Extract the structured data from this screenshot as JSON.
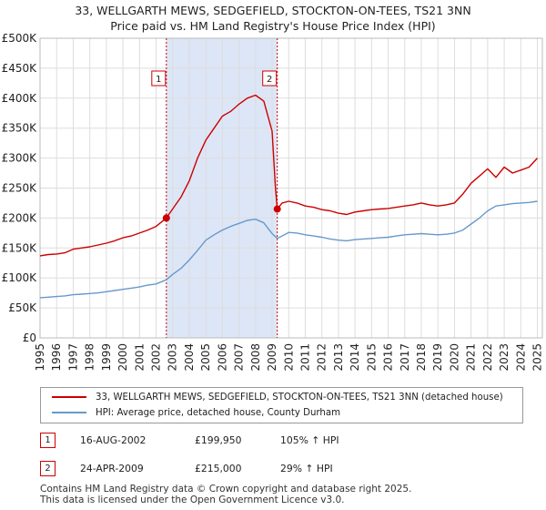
{
  "title_line1": "33, WELLGARTH MEWS, SEDGEFIELD, STOCKTON-ON-TEES, TS21 3NN",
  "title_line2": "Price paid vs. HM Land Registry's House Price Index (HPI)",
  "colors": {
    "property": "#cc0000",
    "hpi": "#6699cc",
    "shade": "#dde6f7",
    "grid": "#dddddd"
  },
  "chart_data": {
    "type": "line",
    "title": "33, WELLGARTH MEWS, SEDGEFIELD, STOCKTON-ON-TEES, TS21 3NN — Price paid vs. HM Land Registry's House Price Index (HPI)",
    "xlabel": "",
    "ylabel": "",
    "xlim": [
      1995,
      2025.3
    ],
    "ylim": [
      0,
      500000
    ],
    "y_ticks": [
      {
        "value": 0,
        "label": "£0"
      },
      {
        "value": 50000,
        "label": "£50K"
      },
      {
        "value": 100000,
        "label": "£100K"
      },
      {
        "value": 150000,
        "label": "£150K"
      },
      {
        "value": 200000,
        "label": "£200K"
      },
      {
        "value": 250000,
        "label": "£250K"
      },
      {
        "value": 300000,
        "label": "£300K"
      },
      {
        "value": 350000,
        "label": "£350K"
      },
      {
        "value": 400000,
        "label": "£400K"
      },
      {
        "value": 450000,
        "label": "£450K"
      },
      {
        "value": 500000,
        "label": "£500K"
      }
    ],
    "x_ticks": [
      "1995",
      "1996",
      "1997",
      "1998",
      "1999",
      "2000",
      "2001",
      "2002",
      "2003",
      "2004",
      "2005",
      "2006",
      "2007",
      "2008",
      "2009",
      "2010",
      "2011",
      "2012",
      "2013",
      "2014",
      "2015",
      "2016",
      "2017",
      "2018",
      "2019",
      "2020",
      "2021",
      "2022",
      "2023",
      "2024",
      "2025"
    ],
    "shaded_period": [
      2002.62,
      2009.31
    ],
    "series": [
      {
        "name": "33, WELLGARTH MEWS, SEDGEFIELD, STOCKTON-ON-TEES, TS21 3NN (detached house)",
        "color": "#cc0000",
        "x": [
          1995,
          1995.5,
          1996,
          1996.5,
          1997,
          1997.5,
          1998,
          1998.5,
          1999,
          1999.5,
          2000,
          2000.5,
          2001,
          2001.5,
          2002,
          2002.62,
          2003,
          2003.5,
          2004,
          2004.5,
          2005,
          2005.5,
          2006,
          2006.5,
          2007,
          2007.5,
          2008,
          2008.5,
          2009,
          2009.2,
          2009.31,
          2009.6,
          2010,
          2010.5,
          2011,
          2011.5,
          2012,
          2012.5,
          2013,
          2013.5,
          2014,
          2014.5,
          2015,
          2015.5,
          2016,
          2016.5,
          2017,
          2017.5,
          2018,
          2018.5,
          2019,
          2019.5,
          2020,
          2020.5,
          2021,
          2021.5,
          2022,
          2022.5,
          2023,
          2023.5,
          2024,
          2024.5,
          2025
        ],
        "y": [
          137000,
          139000,
          140000,
          142000,
          148000,
          150000,
          152000,
          155000,
          158000,
          162000,
          167000,
          170000,
          175000,
          180000,
          186000,
          199950,
          215000,
          235000,
          262000,
          300000,
          330000,
          350000,
          370000,
          378000,
          390000,
          400000,
          405000,
          395000,
          345000,
          250000,
          215000,
          225000,
          228000,
          225000,
          220000,
          218000,
          214000,
          212000,
          208000,
          206000,
          210000,
          212000,
          214000,
          215000,
          216000,
          218000,
          220000,
          222000,
          225000,
          222000,
          220000,
          222000,
          225000,
          240000,
          258000,
          270000,
          282000,
          268000,
          285000,
          275000,
          280000,
          285000,
          300000
        ]
      },
      {
        "name": "HPI: Average price, detached house, County Durham",
        "color": "#6699cc",
        "x": [
          1995,
          1995.5,
          1996,
          1996.5,
          1997,
          1997.5,
          1998,
          1998.5,
          1999,
          1999.5,
          2000,
          2000.5,
          2001,
          2001.5,
          2002,
          2002.62,
          2003,
          2003.5,
          2004,
          2004.5,
          2005,
          2005.5,
          2006,
          2006.5,
          2007,
          2007.5,
          2008,
          2008.5,
          2009,
          2009.31,
          2009.6,
          2010,
          2010.5,
          2011,
          2011.5,
          2012,
          2012.5,
          2013,
          2013.5,
          2014,
          2014.5,
          2015,
          2015.5,
          2016,
          2016.5,
          2017,
          2017.5,
          2018,
          2018.5,
          2019,
          2019.5,
          2020,
          2020.5,
          2021,
          2021.5,
          2022,
          2022.5,
          2023,
          2023.5,
          2024,
          2024.5,
          2025
        ],
        "y": [
          67000,
          68000,
          69000,
          70000,
          72000,
          73000,
          74000,
          75000,
          77000,
          79000,
          81000,
          83000,
          85000,
          88000,
          90000,
          97000,
          106000,
          116000,
          130000,
          146000,
          163000,
          172000,
          180000,
          186000,
          191000,
          196000,
          198000,
          192000,
          174000,
          166000,
          170000,
          176000,
          175000,
          172000,
          170000,
          168000,
          165000,
          163000,
          162000,
          164000,
          165000,
          166000,
          167000,
          168000,
          170000,
          172000,
          173000,
          174000,
          173000,
          172000,
          173000,
          175000,
          180000,
          190000,
          200000,
          212000,
          220000,
          222000,
          224000,
          225000,
          226000,
          228000
        ]
      }
    ],
    "sales": [
      {
        "marker": "1",
        "x": 2002.62,
        "y": 199950
      },
      {
        "marker": "2",
        "x": 2009.31,
        "y": 215000
      }
    ]
  },
  "legend": {
    "property": "33, WELLGARTH MEWS, SEDGEFIELD, STOCKTON-ON-TEES, TS21 3NN (detached house)",
    "hpi": "HPI: Average price, detached house, County Durham"
  },
  "annotations": [
    {
      "marker": "1",
      "date": "16-AUG-2002",
      "price": "£199,950",
      "hpi": "105% ↑ HPI"
    },
    {
      "marker": "2",
      "date": "24-APR-2009",
      "price": "£215,000",
      "hpi": "29% ↑ HPI"
    }
  ],
  "footer_line1": "Contains HM Land Registry data © Crown copyright and database right 2025.",
  "footer_line2": "This data is licensed under the Open Government Licence v3.0."
}
